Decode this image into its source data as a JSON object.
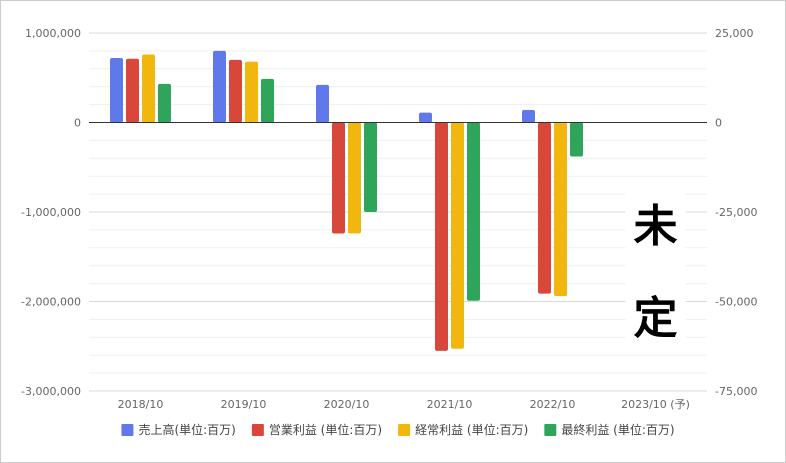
{
  "chart_data": {
    "type": "bar",
    "categories": [
      "2018/10",
      "2019/10",
      "2020/10",
      "2021/10",
      "2022/10",
      "2023/10 (予)"
    ],
    "series": [
      {
        "name": "売上高(単位:百万)",
        "color": "#6079ea",
        "axis": "left",
        "values": [
          720000,
          800000,
          420000,
          110000,
          140000,
          null
        ]
      },
      {
        "name": "営業利益 (単位:百万)",
        "color": "#d9473b",
        "axis": "right",
        "values": [
          17800,
          17500,
          -31000,
          -63800,
          -47800,
          null
        ]
      },
      {
        "name": "経常利益 (単位:百万)",
        "color": "#f2b70f",
        "axis": "right",
        "values": [
          19000,
          17000,
          -31000,
          -63200,
          -48500,
          null
        ]
      },
      {
        "name": "最終利益 (単位:百万)",
        "color": "#2ea55a",
        "axis": "right",
        "values": [
          10800,
          12200,
          -25000,
          -49800,
          -9500,
          null
        ]
      }
    ],
    "left_axis": {
      "ylim": [
        -3000000,
        1000000
      ],
      "ticks": [
        1000000,
        0,
        -1000000,
        -2000000,
        -3000000
      ],
      "tick_labels": [
        "1,000,000",
        "0",
        "-1,000,000",
        "-2,000,000",
        "-3,000,000"
      ]
    },
    "right_axis": {
      "ylim": [
        -75000,
        25000
      ],
      "ticks": [
        25000,
        0,
        -25000,
        -50000,
        -75000
      ],
      "tick_labels": [
        "25,000",
        "0",
        "-25,000",
        "-50,000",
        "-75,000"
      ]
    },
    "grid": true,
    "legend_position": "bottom",
    "annotation": [
      "未",
      "定"
    ],
    "title": "",
    "xlabel": "",
    "ylabel": ""
  }
}
